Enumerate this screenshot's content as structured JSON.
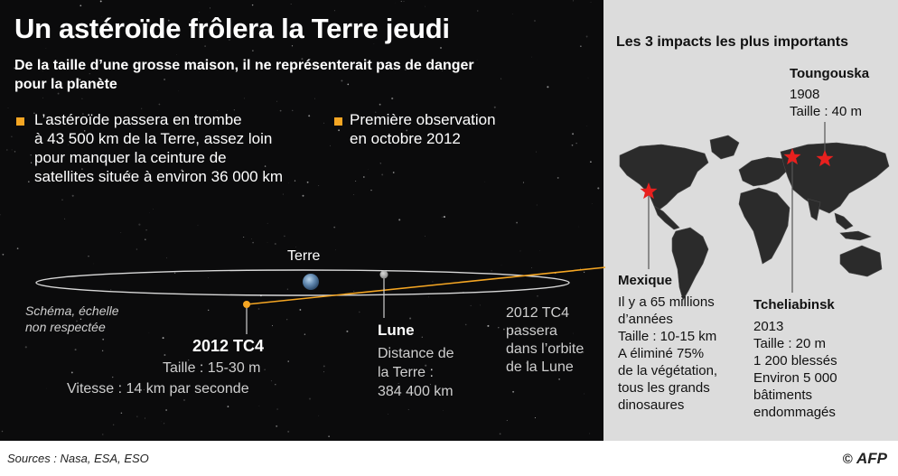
{
  "title": "Un astéroïde frôlera la Terre jeudi",
  "subtitle": {
    "line1": "De la taille d’une grosse maison, il ne représenterait pas de danger",
    "line2": "pour la planète"
  },
  "bullets": [
    {
      "lines": [
        "L’astéroïde passera en trombe",
        "à 43 500 km de la Terre, assez loin",
        "pour manquer la ceinture de",
        "satellites située à environ 36 000 km"
      ]
    },
    {
      "lines": [
        "Première observation",
        "en octobre 2012"
      ]
    }
  ],
  "diagram": {
    "earth_label": "Terre",
    "scale_note": [
      "Schéma, échelle",
      "non respectée"
    ],
    "asteroid": {
      "name": "2012 TC4",
      "size": "Taille : 15-30 m",
      "speed": "Vitesse : 14 km par seconde"
    },
    "moon": {
      "name": "Lune",
      "lines": [
        "Distance de",
        "la Terre :",
        "384 400 km"
      ]
    },
    "orbit_note": [
      "2012 TC4",
      "passera",
      "dans l’orbite",
      "de la Lune"
    ]
  },
  "panel": {
    "title": "Les 3 impacts les plus importants",
    "tunguska": {
      "name": "Toungouska",
      "lines": [
        "1908",
        "Taille : 40 m"
      ]
    },
    "mexico": {
      "name": "Mexique",
      "lines": [
        "Il y a 65 millions",
        "d’années",
        "Taille : 10-15 km",
        "A éliminé 75%",
        "de la végétation,",
        "tous les grands",
        "dinosaures"
      ]
    },
    "chelyabinsk": {
      "name": "Tcheliabinsk",
      "lines": [
        "2013",
        "Taille : 20 m",
        "1 200 blessés",
        "Environ 5 000",
        "bâtiments",
        "endommagés"
      ]
    }
  },
  "footer": {
    "sources": "Sources : Nasa, ESA, ESO",
    "credit_symbol": "©",
    "credit": "AFP"
  },
  "colors": {
    "space": "#0b0b0c",
    "panel": "#dcdcdc",
    "accent": "#f5a623",
    "impact": "#e8201e",
    "land": "#2a2a2a"
  }
}
